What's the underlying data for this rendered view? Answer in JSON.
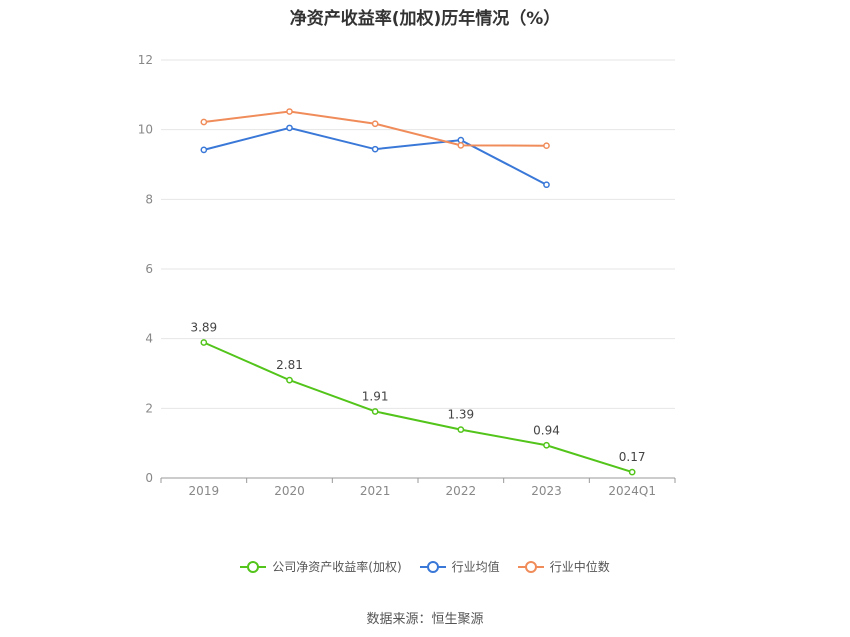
{
  "title": "净资产收益率(加权)历年情况（%）",
  "source": "数据来源：恒生聚源",
  "chart_data": {
    "type": "line",
    "categories": [
      "2019",
      "2020",
      "2021",
      "2022",
      "2023",
      "2024Q1"
    ],
    "ylim": [
      0,
      12
    ],
    "yticks": [
      0,
      2,
      4,
      6,
      8,
      10,
      12
    ],
    "grid": true,
    "legend_position": "bottom",
    "series": [
      {
        "name": "公司净资产收益率(加权)",
        "color": "#52c41a",
        "values": [
          3.89,
          2.81,
          1.91,
          1.39,
          0.94,
          0.17
        ],
        "labels": [
          "3.89",
          "2.81",
          "1.91",
          "1.39",
          "0.94",
          "0.17"
        ]
      },
      {
        "name": "行业均值",
        "color": "#3a78d8",
        "values": [
          9.42,
          10.05,
          9.44,
          9.7,
          8.42,
          null
        ]
      },
      {
        "name": "行业中位数",
        "color": "#f08c5a",
        "values": [
          10.22,
          10.52,
          10.17,
          9.55,
          9.54,
          null
        ]
      }
    ]
  }
}
